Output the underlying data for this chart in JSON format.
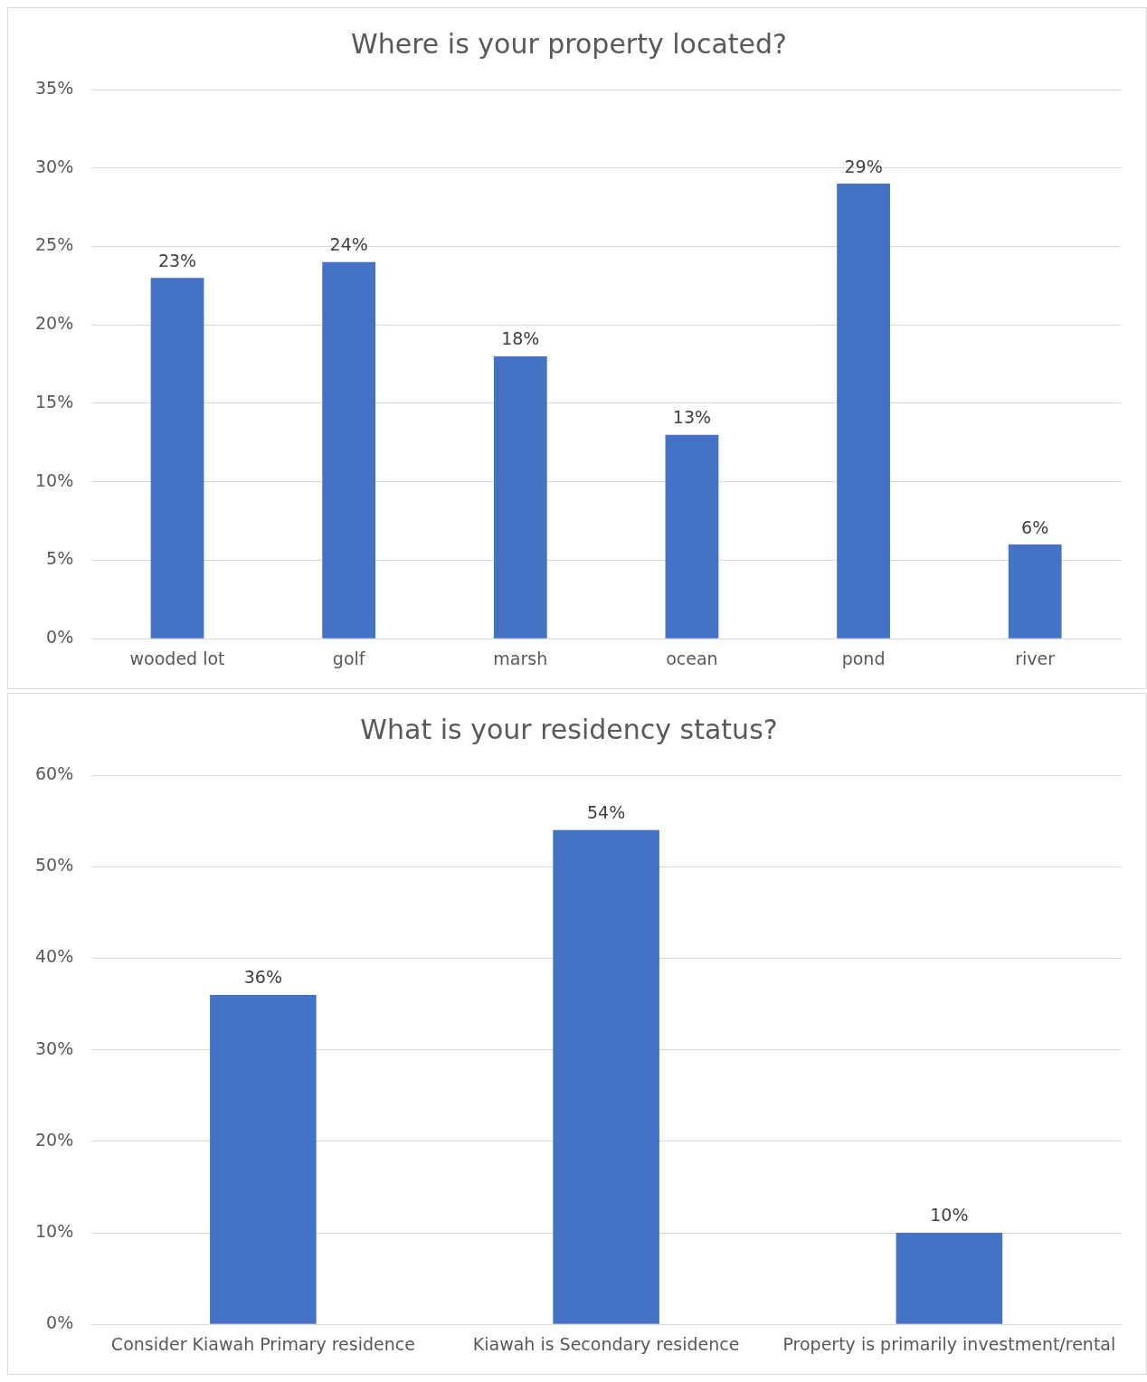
{
  "chart_data": [
    {
      "type": "bar",
      "title": "Where is your property located?",
      "categories": [
        "wooded lot",
        "golf",
        "marsh",
        "ocean",
        "pond",
        "river"
      ],
      "values": [
        23,
        24,
        18,
        13,
        29,
        6
      ],
      "value_labels": [
        "23%",
        "24%",
        "18%",
        "13%",
        "29%",
        "6%"
      ],
      "color": "#4472c4",
      "ylim": [
        0,
        35
      ],
      "yticks": [
        {
          "value": 0,
          "label": "0%"
        },
        {
          "value": 5,
          "label": "5%"
        },
        {
          "value": 10,
          "label": "10%"
        },
        {
          "value": 15,
          "label": "15%"
        },
        {
          "value": 20,
          "label": "20%"
        },
        {
          "value": 25,
          "label": "25%"
        },
        {
          "value": 30,
          "label": "30%"
        },
        {
          "value": 35,
          "label": "35%"
        }
      ],
      "grid": "y",
      "legend": false
    },
    {
      "type": "bar",
      "title": "What is your residency status?",
      "categories": [
        "Consider Kiawah Primary residence",
        "Kiawah is Secondary residence",
        "Property is primarily investment/rental"
      ],
      "values": [
        36,
        54,
        10
      ],
      "value_labels": [
        "36%",
        "54%",
        "10%"
      ],
      "color": "#4472c4",
      "ylim": [
        0,
        60
      ],
      "yticks": [
        {
          "value": 0,
          "label": "0%"
        },
        {
          "value": 10,
          "label": "10%"
        },
        {
          "value": 20,
          "label": "20%"
        },
        {
          "value": 30,
          "label": "30%"
        },
        {
          "value": 40,
          "label": "40%"
        },
        {
          "value": 50,
          "label": "50%"
        },
        {
          "value": 60,
          "label": "60%"
        }
      ],
      "grid": "y",
      "legend": false
    }
  ]
}
